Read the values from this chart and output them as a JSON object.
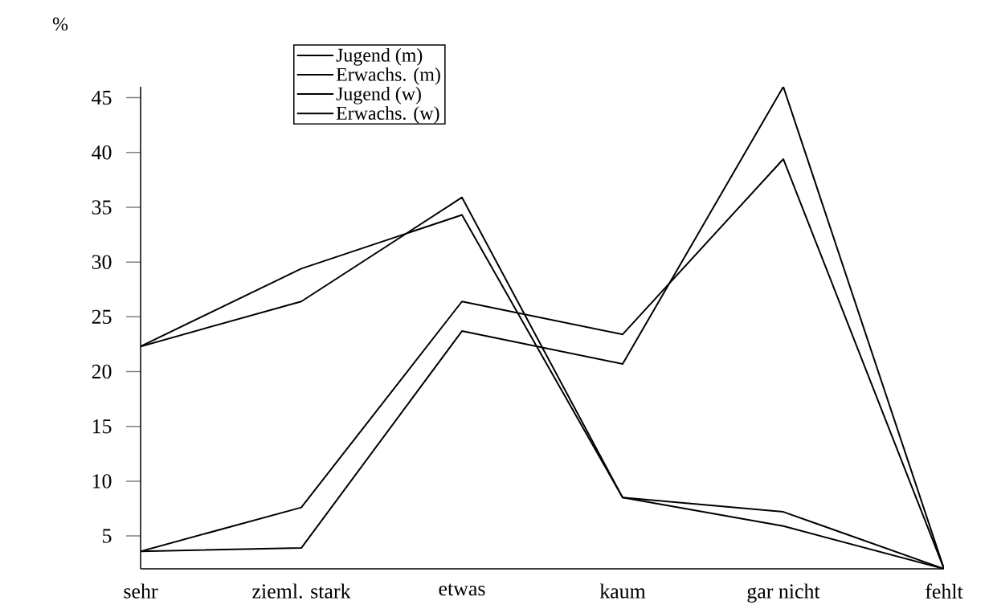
{
  "chart_data": {
    "type": "line",
    "ylabel": "%",
    "categories": [
      "sehr",
      "zieml. stark",
      "etwas",
      "kaum",
      "gar nicht",
      "fehlt"
    ],
    "series": [
      {
        "name": "Jugend (m)",
        "color": "#000000",
        "values": [
          22.3,
          29.4,
          34.3,
          8.5,
          7.2,
          2
        ]
      },
      {
        "name": "Erwachs. (m)",
        "color": "#000000",
        "values": [
          22.3,
          26.4,
          35.9,
          8.5,
          5.9,
          2
        ]
      },
      {
        "name": "Jugend (w)",
        "color": "#000000",
        "values": [
          3.6,
          7.6,
          26.4,
          23.4,
          39.4,
          2
        ]
      },
      {
        "name": "Erwachs. (w)",
        "color": "#000000",
        "values": [
          3.6,
          3.9,
          23.7,
          20.7,
          46,
          2
        ]
      }
    ],
    "ylim": [
      2,
      46
    ],
    "yticks": [
      5,
      10,
      15,
      20,
      25,
      30,
      35,
      40,
      45
    ],
    "grid": false,
    "legend": "top left",
    "marker": "none",
    "line_style": "solid"
  }
}
